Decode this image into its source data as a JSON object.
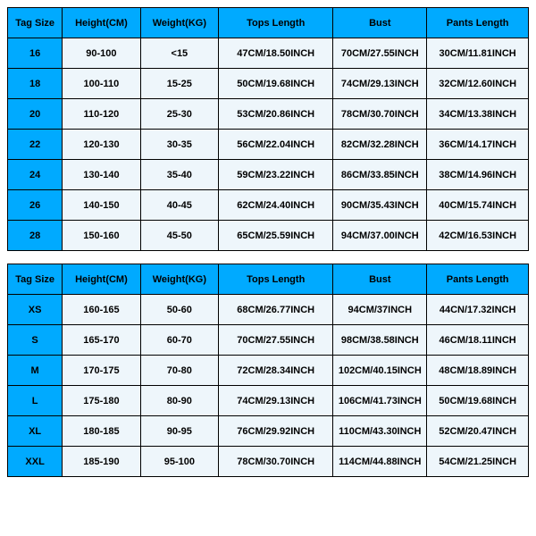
{
  "colors": {
    "header_bg": "#00aaff",
    "data_bg": "#eef6fb",
    "border": "#000000"
  },
  "table1": {
    "columns": [
      "Tag Size",
      "Height(CM)",
      "Weight(KG)",
      "Tops Length",
      "Bust",
      "Pants Length"
    ],
    "rows": [
      [
        "16",
        "90-100",
        "<15",
        "47CM/18.50INCH",
        "70CM/27.55INCH",
        "30CM/11.81INCH"
      ],
      [
        "18",
        "100-110",
        "15-25",
        "50CM/19.68INCH",
        "74CM/29.13INCH",
        "32CM/12.60INCH"
      ],
      [
        "20",
        "110-120",
        "25-30",
        "53CM/20.86INCH",
        "78CM/30.70INCH",
        "34CM/13.38INCH"
      ],
      [
        "22",
        "120-130",
        "30-35",
        "56CM/22.04INCH",
        "82CM/32.28INCH",
        "36CM/14.17INCH"
      ],
      [
        "24",
        "130-140",
        "35-40",
        "59CM/23.22INCH",
        "86CM/33.85INCH",
        "38CM/14.96INCH"
      ],
      [
        "26",
        "140-150",
        "40-45",
        "62CM/24.40INCH",
        "90CM/35.43INCH",
        "40CM/15.74INCH"
      ],
      [
        "28",
        "150-160",
        "45-50",
        "65CM/25.59INCH",
        "94CM/37.00INCH",
        "42CM/16.53INCH"
      ]
    ]
  },
  "table2": {
    "columns": [
      "Tag Size",
      "Height(CM)",
      "Weight(KG)",
      "Tops Length",
      "Bust",
      "Pants Length"
    ],
    "rows": [
      [
        "XS",
        "160-165",
        "50-60",
        "68CM/26.77INCH",
        "94CM/37INCH",
        "44CN/17.32INCH"
      ],
      [
        "S",
        "165-170",
        "60-70",
        "70CM/27.55INCH",
        "98CM/38.58INCH",
        "46CM/18.11INCH"
      ],
      [
        "M",
        "170-175",
        "70-80",
        "72CM/28.34INCH",
        "102CM/40.15INCH",
        "48CM/18.89INCH"
      ],
      [
        "L",
        "175-180",
        "80-90",
        "74CM/29.13INCH",
        "106CM/41.73INCH",
        "50CM/19.68INCH"
      ],
      [
        "XL",
        "180-185",
        "90-95",
        "76CM/29.92INCH",
        "110CM/43.30INCH",
        "52CM/20.47INCH"
      ],
      [
        "XXL",
        "185-190",
        "95-100",
        "78CM/30.70INCH",
        "114CM/44.88INCH",
        "54CM/21.25INCH"
      ]
    ]
  }
}
